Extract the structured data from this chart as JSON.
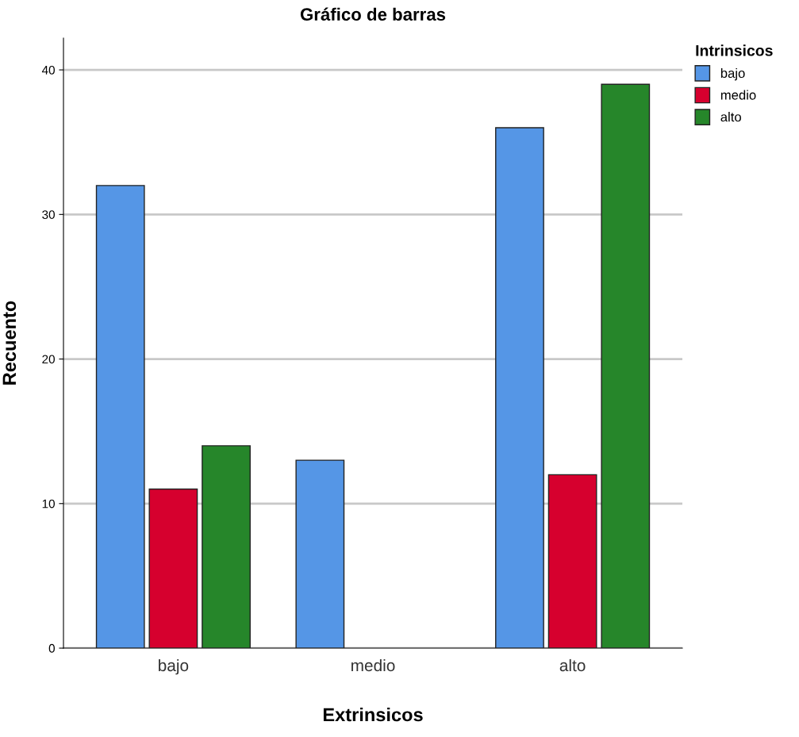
{
  "chart_data": {
    "type": "bar",
    "title": "Gráfico de barras",
    "xlabel": "Extrinsicos",
    "ylabel": "Recuento",
    "legend_title": "Intrinsicos",
    "categories": [
      "bajo",
      "medio",
      "alto"
    ],
    "series": [
      {
        "name": "bajo",
        "color": "#5596e6",
        "values": [
          32,
          13,
          36
        ]
      },
      {
        "name": "medio",
        "color": "#d6002e",
        "values": [
          11,
          null,
          12
        ]
      },
      {
        "name": "alto",
        "color": "#26862a",
        "values": [
          14,
          null,
          39
        ]
      }
    ],
    "ylim": [
      0,
      42.2
    ],
    "yticks": [
      0,
      10,
      20,
      30,
      40
    ],
    "grid": "y",
    "legend": "top right"
  }
}
